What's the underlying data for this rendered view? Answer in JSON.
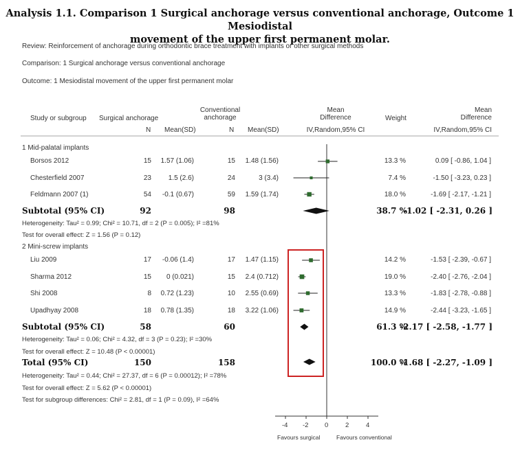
{
  "title_line1": "Analysis 1.1.   Comparison 1 Surgical anchorage versus conventional anchorage, Outcome 1 Mesiodistal",
  "title_line2": "movement of the upper first permanent molar.",
  "review": "Review:   Reinforcement of anchorage during orthodontic brace treatment with implants or other surgical methods",
  "comparison": "Comparison:    1 Surgical anchorage versus conventional anchorage",
  "outcome": "Outcome:    1 Mesiodistal movement of the upper first permanent molar",
  "headers": {
    "study": "Study or subgroup",
    "surgical": "Surgical anchorage",
    "conventional_1": "Conventional",
    "conventional_2": "anchorage",
    "n": "N",
    "mean_sd": "Mean(SD)",
    "md_1": "Mean",
    "md_2": "Difference",
    "md_3": "IV,Random,95% CI",
    "weight": "Weight",
    "md2_1": "Mean",
    "md2_2": "Difference",
    "md2_3": "IV,Random,95% CI"
  },
  "chart_data": {
    "type": "forest",
    "x_ticks": [
      "-4",
      "-2",
      "0",
      "2",
      "4"
    ],
    "xlim": [
      -4,
      4
    ],
    "favours_left": "Favours surgical",
    "favours_right": "Favours conventional",
    "groups": [
      {
        "label": "1 Mid-palatal implants",
        "studies": [
          {
            "name": "Borsos 2012",
            "n1": "15",
            "ms1": "1.57 (1.06)",
            "n2": "15",
            "ms2": "1.48 (1.56)",
            "weight": "13.3 %",
            "ci_text": "0.09 [ -0.86, 1.04 ]",
            "md": 0.09,
            "lo": -0.86,
            "hi": 1.04
          },
          {
            "name": "Chesterfield 2007",
            "n1": "23",
            "ms1": "1.5 (2.6)",
            "n2": "24",
            "ms2": "3 (3.4)",
            "weight": "7.4 %",
            "ci_text": "-1.50 [ -3.23, 0.23 ]",
            "md": -1.5,
            "lo": -3.23,
            "hi": 0.23
          },
          {
            "name": "Feldmann 2007 (1)",
            "n1": "54",
            "ms1": "-0.1 (0.67)",
            "n2": "59",
            "ms2": "1.59 (1.74)",
            "weight": "18.0 %",
            "ci_text": "-1.69 [ -2.17, -1.21 ]",
            "md": -1.69,
            "lo": -2.17,
            "hi": -1.21
          }
        ],
        "subtotal": {
          "label": "Subtotal (95% CI)",
          "n1": "92",
          "n2": "98",
          "weight": "38.7 %",
          "ci_text": "-1.02 [ -2.31, 0.26 ]",
          "md": -1.02,
          "lo": -2.31,
          "hi": 0.26
        },
        "heterogeneity": "Heterogeneity: Tau² = 0.99; Chi² = 10.71, df = 2 (P = 0.005); I² =81%",
        "overall": "Test for overall effect: Z = 1.56 (P = 0.12)"
      },
      {
        "label": "2 Mini-screw implants",
        "studies": [
          {
            "name": "Liu 2009",
            "n1": "17",
            "ms1": "-0.06 (1.4)",
            "n2": "17",
            "ms2": "1.47 (1.15)",
            "weight": "14.2 %",
            "ci_text": "-1.53 [ -2.39, -0.67 ]",
            "md": -1.53,
            "lo": -2.39,
            "hi": -0.67
          },
          {
            "name": "Sharma 2012",
            "n1": "15",
            "ms1": "0 (0.021)",
            "n2": "15",
            "ms2": "2.4 (0.712)",
            "weight": "19.0 %",
            "ci_text": "-2.40 [ -2.76, -2.04 ]",
            "md": -2.4,
            "lo": -2.76,
            "hi": -2.04
          },
          {
            "name": "Shi 2008",
            "n1": "8",
            "ms1": "0.72 (1.23)",
            "n2": "10",
            "ms2": "2.55 (0.69)",
            "weight": "13.3 %",
            "ci_text": "-1.83 [ -2.78, -0.88 ]",
            "md": -1.83,
            "lo": -2.78,
            "hi": -0.88
          },
          {
            "name": "Upadhyay 2008",
            "n1": "18",
            "ms1": "0.78 (1.35)",
            "n2": "18",
            "ms2": "3.22 (1.06)",
            "weight": "14.9 %",
            "ci_text": "-2.44 [ -3.23, -1.65 ]",
            "md": -2.44,
            "lo": -3.23,
            "hi": -1.65
          }
        ],
        "subtotal": {
          "label": "Subtotal (95% CI)",
          "n1": "58",
          "n2": "60",
          "weight": "61.3 %",
          "ci_text": "-2.17 [ -2.58, -1.77 ]",
          "md": -2.17,
          "lo": -2.58,
          "hi": -1.77
        },
        "heterogeneity": "Heterogeneity: Tau² = 0.06; Chi² = 4.32, df = 3 (P = 0.23); I² =30%",
        "overall": "Test for overall effect: Z = 10.48 (P < 0.00001)"
      }
    ],
    "total": {
      "label": "Total (95% CI)",
      "n1": "150",
      "n2": "158",
      "weight": "100.0 %",
      "ci_text": "-1.68 [ -2.27, -1.09 ]",
      "md": -1.68,
      "lo": -2.27,
      "hi": -1.09
    },
    "total_notes": [
      "Heterogeneity: Tau² = 0.44; Chi² = 27.37, df = 6 (P = 0.00012); I² =78%",
      "Test for overall effect: Z = 5.62 (P < 0.00001)",
      "Test for subgroup differences: Chi² = 2.81, df = 1 (P = 0.09), I² =64%"
    ]
  },
  "colors": {
    "marker": "#2e6b2e",
    "highlight": "#cc2222"
  }
}
